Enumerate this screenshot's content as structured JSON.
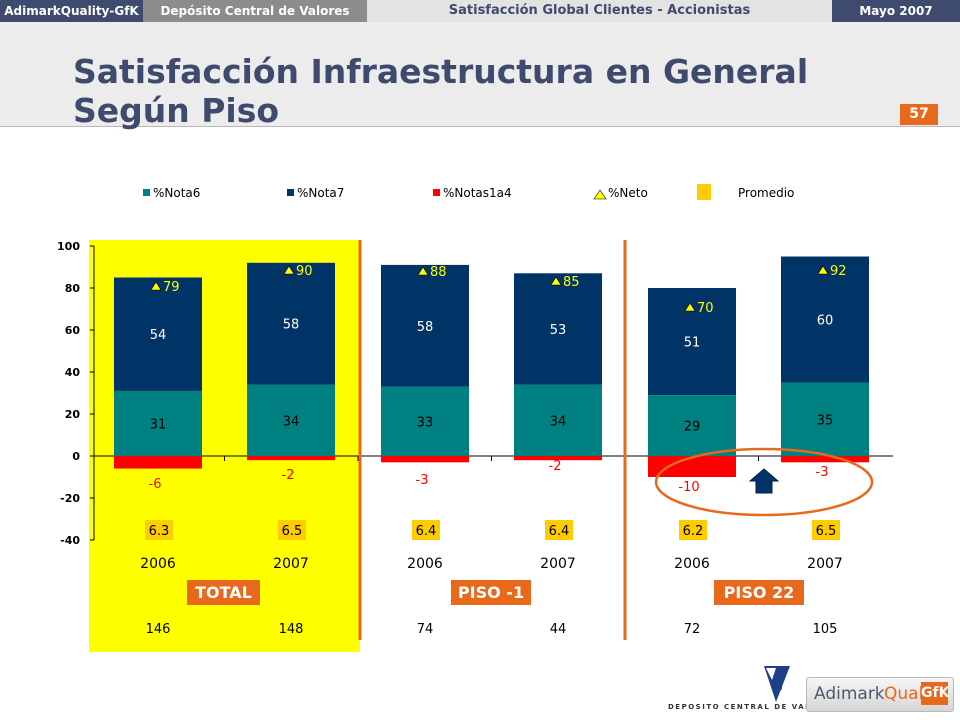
{
  "header": {
    "brand": "AdimarkQuality-GfK",
    "client": "Depósito Central de Valores",
    "report_title": "Satisfacción Global Clientes - Accionistas",
    "date": "Mayo 2007",
    "title_line1": "Satisfacción Infraestructura en General",
    "title_line2": "Según Piso",
    "page_number": "57"
  },
  "colors": {
    "nota6": "#008080",
    "nota7": "#003366",
    "notas1a4": "#ff0000",
    "neto_marker": "#ffff00",
    "promedio": "#ffcc00",
    "total_highlight": "#ffff00",
    "separator": "#e8691c"
  },
  "chart_data": {
    "type": "bar",
    "stacked": true,
    "legend": {
      "placement": "top",
      "entries": [
        "%Nota6",
        "%Nota7",
        "%Notas1a4",
        "%Neto",
        "Promedio"
      ]
    },
    "categories": [
      "2006",
      "2007",
      "2006",
      "2007",
      "2006",
      "2007"
    ],
    "groups": [
      {
        "label": "TOTAL",
        "categories": [
          0,
          1
        ]
      },
      {
        "label": "PISO -1",
        "categories": [
          2,
          3
        ]
      },
      {
        "label": "PISO 22",
        "categories": [
          4,
          5
        ]
      }
    ],
    "series": [
      {
        "name": "%Nota6",
        "values": [
          31,
          34,
          33,
          34,
          29,
          35
        ]
      },
      {
        "name": "%Nota7",
        "values": [
          54,
          58,
          58,
          53,
          51,
          60
        ]
      },
      {
        "name": "%Notas1a4",
        "values": [
          -6,
          -2,
          -3,
          -2,
          -10,
          -3
        ]
      }
    ],
    "neto": [
      79,
      90,
      88,
      85,
      70,
      92
    ],
    "promedio": [
      "6.3",
      "6.5",
      "6.4",
      "6.4",
      "6.2",
      "6.5"
    ],
    "base_counts": [
      "146",
      "148",
      "74",
      "44",
      "72",
      "105"
    ],
    "y_ticks": [
      100,
      80,
      60,
      40,
      20,
      0,
      -20,
      -40
    ],
    "ylim": [
      -40,
      100
    ],
    "grid": false
  },
  "footer": {
    "logo_dcv_text": "DEPOSITO CENTRAL DE VALORES",
    "logo_gfk_adimark": "Adimark",
    "logo_gfk_quality": "Quality",
    "logo_gfk_box": "GfK"
  }
}
